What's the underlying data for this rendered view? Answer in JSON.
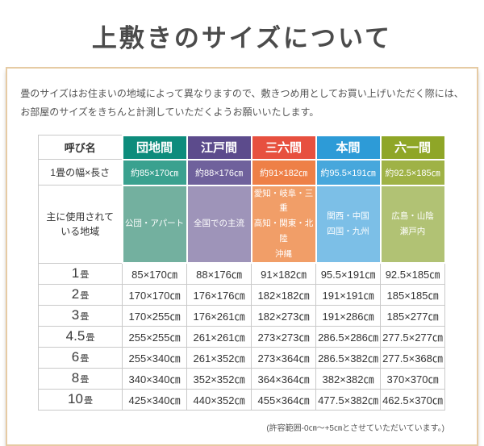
{
  "page": {
    "title": "上敷きのサイズについて",
    "description_line1": "畳のサイズはお住まいの地域によって異なりますので、敷きつめ用としてお買い上げいただく際には、",
    "description_line2": "お部屋のサイズをきちんと計測していただくようお願いいたします。",
    "footnote": "(許容範囲-0㎝〜+5㎝とさせていただいています。)",
    "frame_border_color": "#e6cba4"
  },
  "table": {
    "corner_label": "呼び名",
    "columns": [
      {
        "name": "団地間",
        "header_color": "#0d8c7c",
        "mid_color": "#3aa18f",
        "light_color": "#73b09f"
      },
      {
        "name": "江戸間",
        "header_color": "#5c4b8c",
        "mid_color": "#6f619c",
        "light_color": "#9e94b9"
      },
      {
        "name": "三六間",
        "header_color": "#e7503f",
        "mid_color": "#ee8047",
        "light_color": "#f19e68"
      },
      {
        "name": "本間",
        "header_color": "#2d9bd7",
        "mid_color": "#47a7dc",
        "light_color": "#7cbfe7"
      },
      {
        "name": "六一間",
        "header_color": "#8fa627",
        "mid_color": "#9fb246",
        "light_color": "#b1c274"
      }
    ],
    "width_row": {
      "label": "1畳の幅×長さ",
      "values": [
        "約85×170㎝",
        "約88×176㎝",
        "約91×182㎝",
        "約95.5×191㎝",
        "約92.5×185㎝"
      ]
    },
    "region_row": {
      "label": "主に使用されて\nいる地域",
      "values": [
        "公団・アパート",
        "全国での主流",
        "愛知・岐阜・三重\n高知・関東・北陸\n沖縄",
        "関西・中国\n四国・九州",
        "広島・山陰\n瀬戸内"
      ]
    },
    "size_rows": [
      {
        "num": "1",
        "unit": "畳",
        "values": [
          "85×170㎝",
          "88×176㎝",
          "91×182㎝",
          "95.5×191㎝",
          "92.5×185㎝"
        ]
      },
      {
        "num": "2",
        "unit": "畳",
        "values": [
          "170×170㎝",
          "176×176㎝",
          "182×182㎝",
          "191×191㎝",
          "185×185㎝"
        ]
      },
      {
        "num": "3",
        "unit": "畳",
        "values": [
          "170×255㎝",
          "176×261㎝",
          "182×273㎝",
          "191×286㎝",
          "185×277㎝"
        ]
      },
      {
        "num": "4.5",
        "unit": "畳",
        "values": [
          "255×255㎝",
          "261×261㎝",
          "273×273㎝",
          "286.5×286㎝",
          "277.5×277㎝"
        ]
      },
      {
        "num": "6",
        "unit": "畳",
        "values": [
          "255×340㎝",
          "261×352㎝",
          "273×364㎝",
          "286.5×382㎝",
          "277.5×368㎝"
        ]
      },
      {
        "num": "8",
        "unit": "畳",
        "values": [
          "340×340㎝",
          "352×352㎝",
          "364×364㎝",
          "382×382㎝",
          "370×370㎝"
        ]
      },
      {
        "num": "10",
        "unit": "畳",
        "values": [
          "425×340㎝",
          "440×352㎝",
          "455×364㎝",
          "477.5×382㎝",
          "462.5×370㎝"
        ]
      }
    ]
  }
}
